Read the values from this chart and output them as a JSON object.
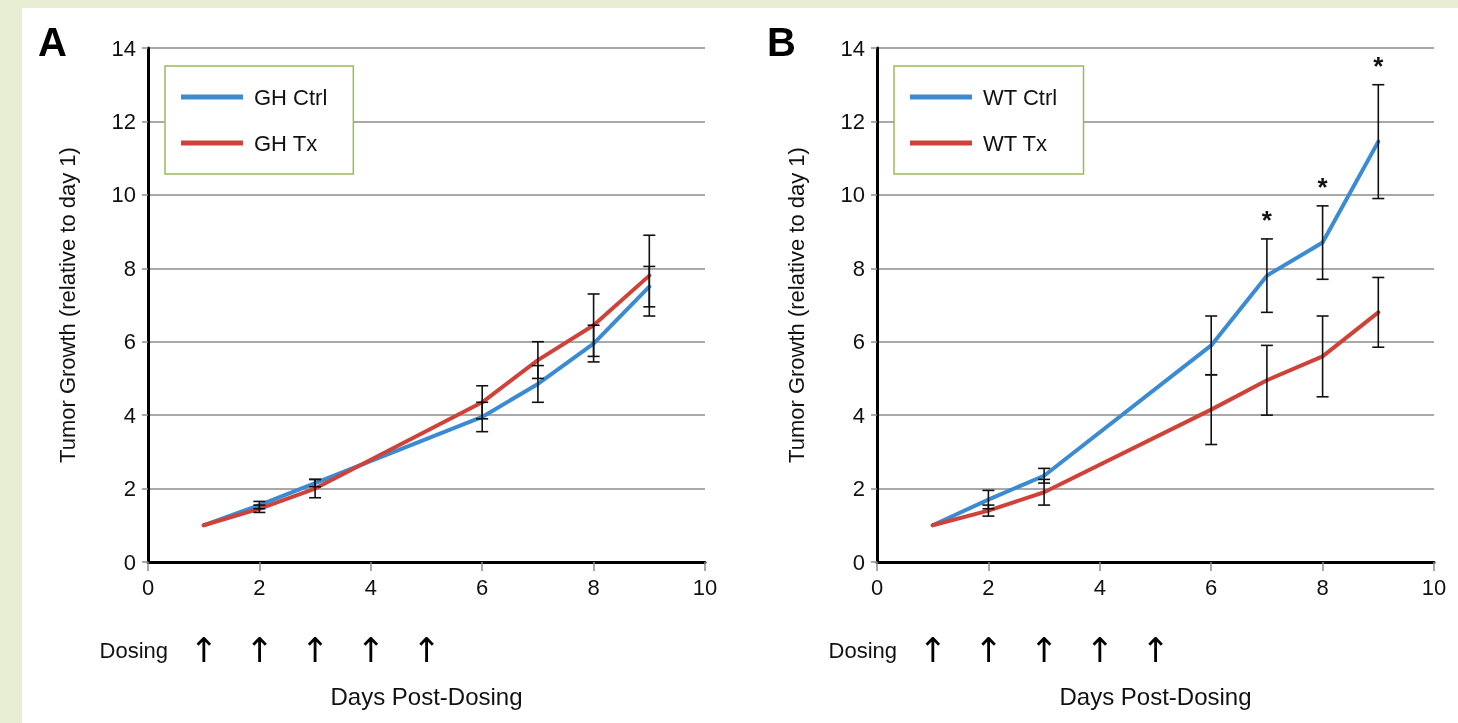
{
  "chart_data": [
    {
      "type": "line",
      "title": "A",
      "xlabel": "Days Post-Dosing",
      "ylabel": "Tumor Growth (relative to day 1)",
      "x": [
        1,
        2,
        3,
        6,
        7,
        8,
        9
      ],
      "series": [
        {
          "name": "GH Ctrl",
          "color": "#3a8bd1",
          "values": [
            1,
            1.55,
            2.15,
            3.95,
            4.85,
            5.95,
            7.5
          ],
          "errors": [
            null,
            0.1,
            0.1,
            0.4,
            0.5,
            0.5,
            0.55
          ]
        },
        {
          "name": "GH Tx",
          "color": "#cf423a",
          "values": [
            1,
            1.45,
            2,
            4.35,
            5.5,
            6.45,
            7.8
          ],
          "errors": [
            null,
            0.1,
            0.25,
            0.45,
            0.5,
            0.85,
            1.1
          ]
        }
      ],
      "xlim": [
        0,
        10
      ],
      "xticks": [
        0,
        2,
        4,
        6,
        8,
        10
      ],
      "ylim": [
        0,
        14
      ],
      "yticks": [
        0,
        2,
        4,
        6,
        8,
        10,
        12,
        14
      ],
      "grid": "y",
      "legend": "top left",
      "marker": "none",
      "annotations": [
        "Dosing",
        "↑",
        "↑",
        "↑",
        "↑",
        "↑"
      ]
    },
    {
      "type": "line",
      "title": "B",
      "xlabel": "Days Post-Dosing",
      "ylabel": "Tumor Growth (relative to day 1)",
      "x": [
        1,
        2,
        3,
        6,
        7,
        8,
        9
      ],
      "series": [
        {
          "name": "WT Ctrl",
          "color": "#3a8bd1",
          "values": [
            1,
            1.7,
            2.35,
            5.9,
            7.8,
            8.7,
            11.45
          ],
          "errors": [
            null,
            0.25,
            0.2,
            0.8,
            1,
            1,
            1.55
          ]
        },
        {
          "name": "WT Tx",
          "color": "#cf423a",
          "values": [
            1,
            1.4,
            1.9,
            4.15,
            4.95,
            5.6,
            6.8
          ],
          "errors": [
            null,
            0.15,
            0.35,
            0.95,
            0.95,
            1.1,
            0.95
          ]
        }
      ],
      "xlim": [
        0,
        10
      ],
      "xticks": [
        0,
        2,
        4,
        6,
        8,
        10
      ],
      "ylim": [
        0,
        14
      ],
      "yticks": [
        0,
        2,
        4,
        6,
        8,
        10,
        12,
        14
      ],
      "grid": "y",
      "legend": "top left",
      "marker": "none",
      "annotations": [
        "Dosing",
        "↑",
        "↑",
        "↑",
        "↑",
        "↑",
        {
          "text": "*",
          "x": 7,
          "y": 7.8
        },
        {
          "text": "*",
          "x": 8,
          "y": 8.7
        },
        {
          "text": "*",
          "x": 9,
          "y": 11.45
        }
      ]
    }
  ]
}
